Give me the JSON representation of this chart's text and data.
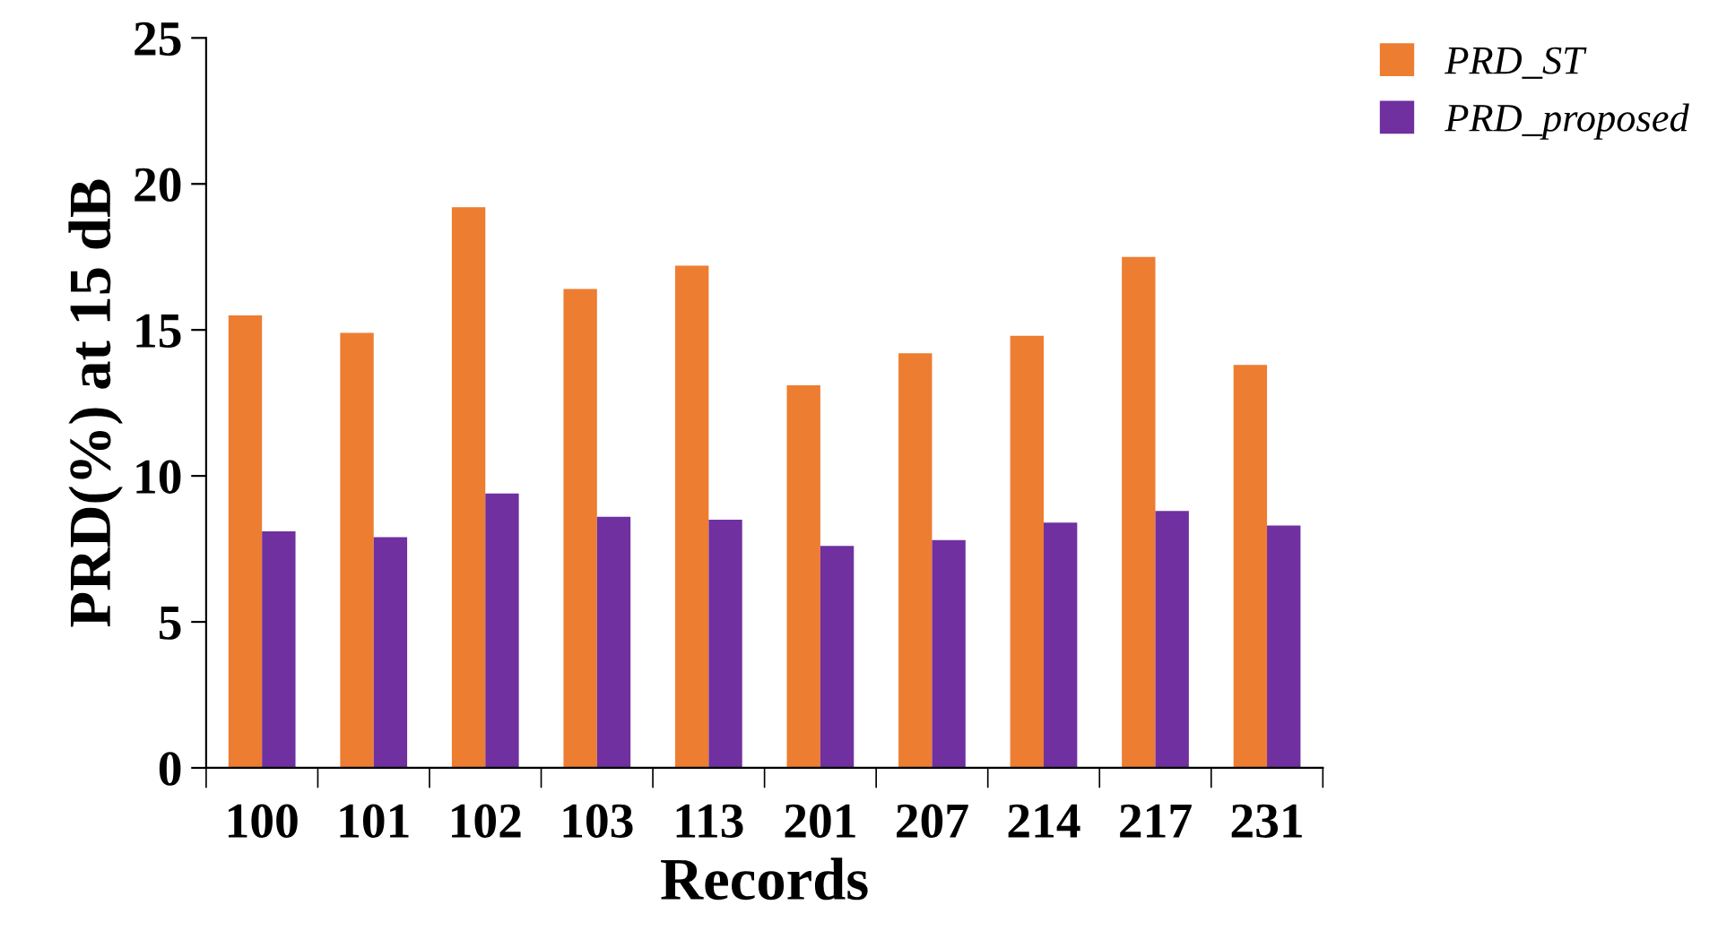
{
  "chart_data": {
    "type": "bar",
    "xlabel": "Records",
    "ylabel": "PRD(%) at 15 dB",
    "categories": [
      "100",
      "101",
      "102",
      "103",
      "113",
      "201",
      "207",
      "214",
      "217",
      "231"
    ],
    "series": [
      {
        "name": "PRD_ST",
        "color": "#ed7d31",
        "values": [
          15.5,
          14.9,
          19.2,
          16.4,
          17.2,
          13.1,
          14.2,
          14.8,
          17.5,
          13.8
        ]
      },
      {
        "name": "PRD_proposed",
        "color": "#7030a0",
        "values": [
          8.1,
          7.9,
          9.4,
          8.6,
          8.5,
          7.6,
          7.8,
          8.4,
          8.8,
          8.3
        ]
      }
    ],
    "ylim": [
      0,
      25
    ],
    "yticks": [
      0,
      5,
      10,
      15,
      20,
      25
    ],
    "grid": false,
    "legend": "top right"
  }
}
